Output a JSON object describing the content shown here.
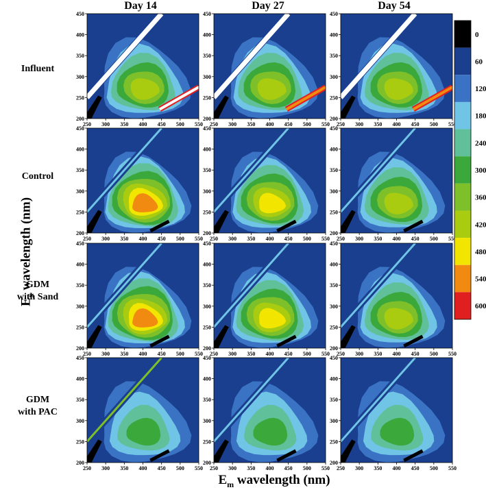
{
  "chart_data": {
    "type": "heatmap",
    "title": "",
    "xlabel": "E",
    "xlabel_sub": "m",
    "xlabel_rest": " wavelength (nm)",
    "ylabel": "E",
    "ylabel_sub": "x",
    "ylabel_rest": " wavelength (nm)",
    "columns": [
      "Day 14",
      "Day 27",
      "Day 54"
    ],
    "rows": [
      {
        "label_lines": [
          "Influent"
        ]
      },
      {
        "label_lines": [
          "Control"
        ]
      },
      {
        "label_lines": [
          "GDM",
          "with Sand"
        ]
      },
      {
        "label_lines": [
          "GDM",
          "with PAC"
        ]
      }
    ],
    "xlim": [
      250,
      550
    ],
    "ylim": [
      200,
      450
    ],
    "x_ticks": [
      250,
      300,
      350,
      400,
      450,
      500,
      550
    ],
    "y_ticks": [
      200,
      250,
      300,
      350,
      400,
      450
    ],
    "colorbar": {
      "labels": [
        "0",
        "60",
        "120",
        "180",
        "240",
        "300",
        "360",
        "420",
        "480",
        "540",
        "600"
      ],
      "colors": [
        "#000000",
        "#1a3f8f",
        "#3a72c4",
        "#70c4e6",
        "#5fc09a",
        "#3aa83a",
        "#7ec02a",
        "#aacc10",
        "#f2e600",
        "#f08a10",
        "#e02020"
      ]
    },
    "panels": [
      [
        {
          "peak": 420,
          "scatter": "white",
          "second_scatter": "white"
        },
        {
          "peak": 420,
          "scatter": "white",
          "second_scatter": "orange"
        },
        {
          "peak": 420,
          "scatter": "white",
          "second_scatter": "orange"
        }
      ],
      [
        {
          "peak": 540,
          "scatter": "cyan",
          "second_scatter": "black"
        },
        {
          "peak": 500,
          "scatter": "cyan",
          "second_scatter": "black"
        },
        {
          "peak": 420,
          "scatter": "cyan",
          "second_scatter": "black"
        }
      ],
      [
        {
          "peak": 540,
          "scatter": "cyan",
          "second_scatter": "black"
        },
        {
          "peak": 480,
          "scatter": "cyan",
          "second_scatter": "black"
        },
        {
          "peak": 420,
          "scatter": "cyan",
          "second_scatter": "black"
        }
      ],
      [
        {
          "peak": 300,
          "scatter": "green",
          "second_scatter": "black"
        },
        {
          "peak": 300,
          "scatter": "cyan",
          "second_scatter": "black"
        },
        {
          "peak": 300,
          "scatter": "cyan",
          "second_scatter": "black"
        }
      ]
    ]
  }
}
